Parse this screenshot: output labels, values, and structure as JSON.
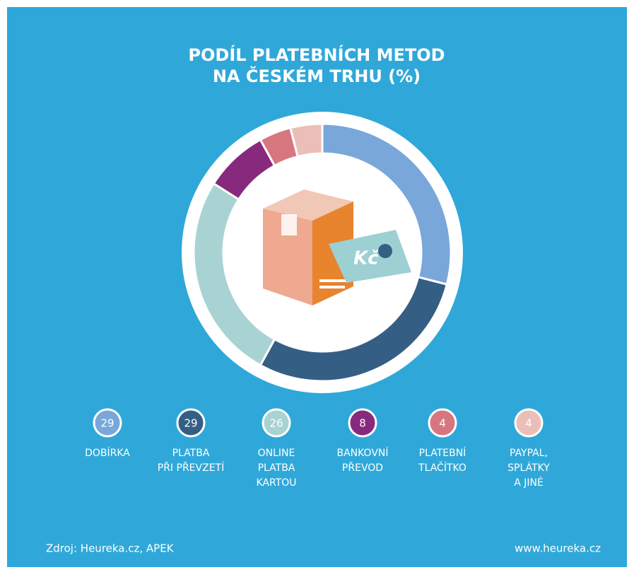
{
  "chart_data": {
    "type": "donut",
    "title": [
      "PODÍL PLATEBNÍCH METOD",
      "NA ČESKÉM TRHU (%)"
    ],
    "categories": [
      [
        "DOBÍRKA"
      ],
      [
        "PLATBA",
        "PŘI PŘEVZETÍ"
      ],
      [
        "ONLINE",
        "PLATBA",
        "KARTOU"
      ],
      [
        "BANKOVNÍ",
        "PŘEVOD"
      ],
      [
        "PLATEBNÍ",
        "TLAČÍTKO"
      ],
      [
        "PAYPAL,",
        "SPLÁTKY",
        "A JINÉ"
      ]
    ],
    "values": [
      29,
      29,
      26,
      8,
      4,
      4
    ],
    "colors": [
      "#79a7d9",
      "#355e84",
      "#a9d3d3",
      "#872a7d",
      "#d87680",
      "#ebbfb7"
    ],
    "icon_text": "Kč",
    "source": "Zdroj: Heureka.cz, APEK",
    "website": "www.heureka.cz"
  }
}
